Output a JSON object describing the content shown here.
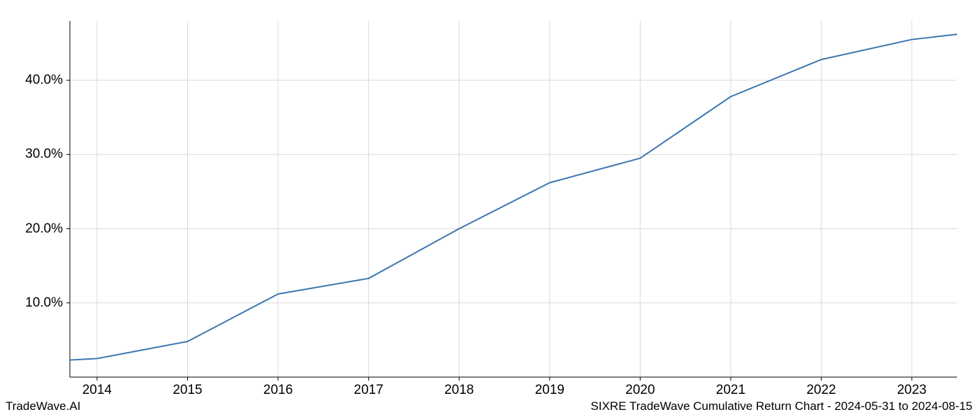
{
  "footer": {
    "left": "TradeWave.AI",
    "right": "SIXRE TradeWave Cumulative Return Chart - 2024-05-31 to 2024-08-15"
  },
  "chart": {
    "type": "line",
    "background_color": "#ffffff",
    "line_color": "#3a76af",
    "line_width": 2,
    "grid_color": "#d9d9d9",
    "grid_width": 1,
    "axis_color": "#000000",
    "tick_color": "#000000",
    "tick_fontsize": 19,
    "label_fontsize": 17,
    "x": {
      "data_min": 2013.7,
      "data_max": 2023.5,
      "ticks": [
        2014,
        2015,
        2016,
        2017,
        2018,
        2019,
        2020,
        2021,
        2022,
        2023
      ],
      "tick_labels": [
        "2014",
        "2015",
        "2016",
        "2017",
        "2018",
        "2019",
        "2020",
        "2021",
        "2022",
        "2023"
      ]
    },
    "y": {
      "data_min": 0,
      "data_max": 48,
      "ticks": [
        10,
        20,
        30,
        40
      ],
      "tick_labels": [
        "10.0%",
        "20.0%",
        "30.0%",
        "40.0%"
      ]
    },
    "series": [
      {
        "x": [
          2013.7,
          2014,
          2015,
          2016,
          2017,
          2018,
          2019,
          2020,
          2021,
          2022,
          2023,
          2023.5
        ],
        "y": [
          2.3,
          2.5,
          4.8,
          11.2,
          13.3,
          20.0,
          26.2,
          29.5,
          37.8,
          42.8,
          45.5,
          46.2
        ]
      }
    ],
    "spines": {
      "left": true,
      "bottom": true,
      "right": false,
      "top": false
    }
  }
}
